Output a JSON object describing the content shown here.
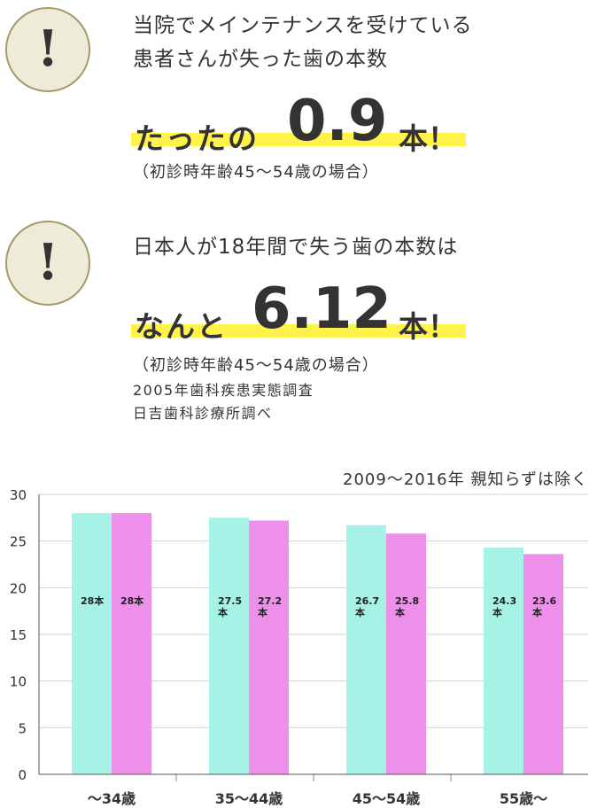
{
  "section1": {
    "badge_mark": "!",
    "headline_lines": [
      "当院でメインテナンスを受けている",
      "患者さんが失った歯の本数"
    ],
    "big_prefix": "たったの",
    "big_number": "0.9",
    "big_suffix": "本！",
    "note": "（初診時年齢45～54歳の場合）"
  },
  "section2": {
    "badge_mark": "!",
    "headline": "日本人が18年間で失う歯の本数は",
    "big_prefix": "なんと",
    "big_number": "6.12",
    "big_suffix": "本！",
    "note": "（初診時年齢45～54歳の場合）",
    "source_lines": [
      "2005年歯科疾患実態調査",
      "日吉歯科診療所調べ"
    ]
  },
  "chart_note": "2009～2016年 親知らずは除く",
  "chart_data": {
    "type": "bar",
    "categories": [
      "～34歳",
      "35～44歳",
      "45～54歳",
      "55歳～"
    ],
    "series": [
      {
        "values": [
          28,
          27.5,
          26.7,
          24.3
        ],
        "labels": [
          "28本",
          "27.5\n本",
          "26.7\n本",
          "24.3\n本"
        ],
        "color": "#a6f2e6"
      },
      {
        "values": [
          28,
          27.2,
          25.8,
          23.6
        ],
        "labels": [
          "28本",
          "27.2\n本",
          "25.8\n本",
          "23.6\n本"
        ],
        "color": "#ec90e9"
      }
    ],
    "y_ticks": [
      "0",
      "5",
      "10",
      "15",
      "20",
      "25",
      "30"
    ],
    "ylim": [
      0,
      30
    ],
    "grid": true
  },
  "colors": {
    "highlight": "#fff24a",
    "badge_fill": "#eeebd8",
    "badge_border": "#a19c66",
    "grid": "#c7d9c9"
  }
}
